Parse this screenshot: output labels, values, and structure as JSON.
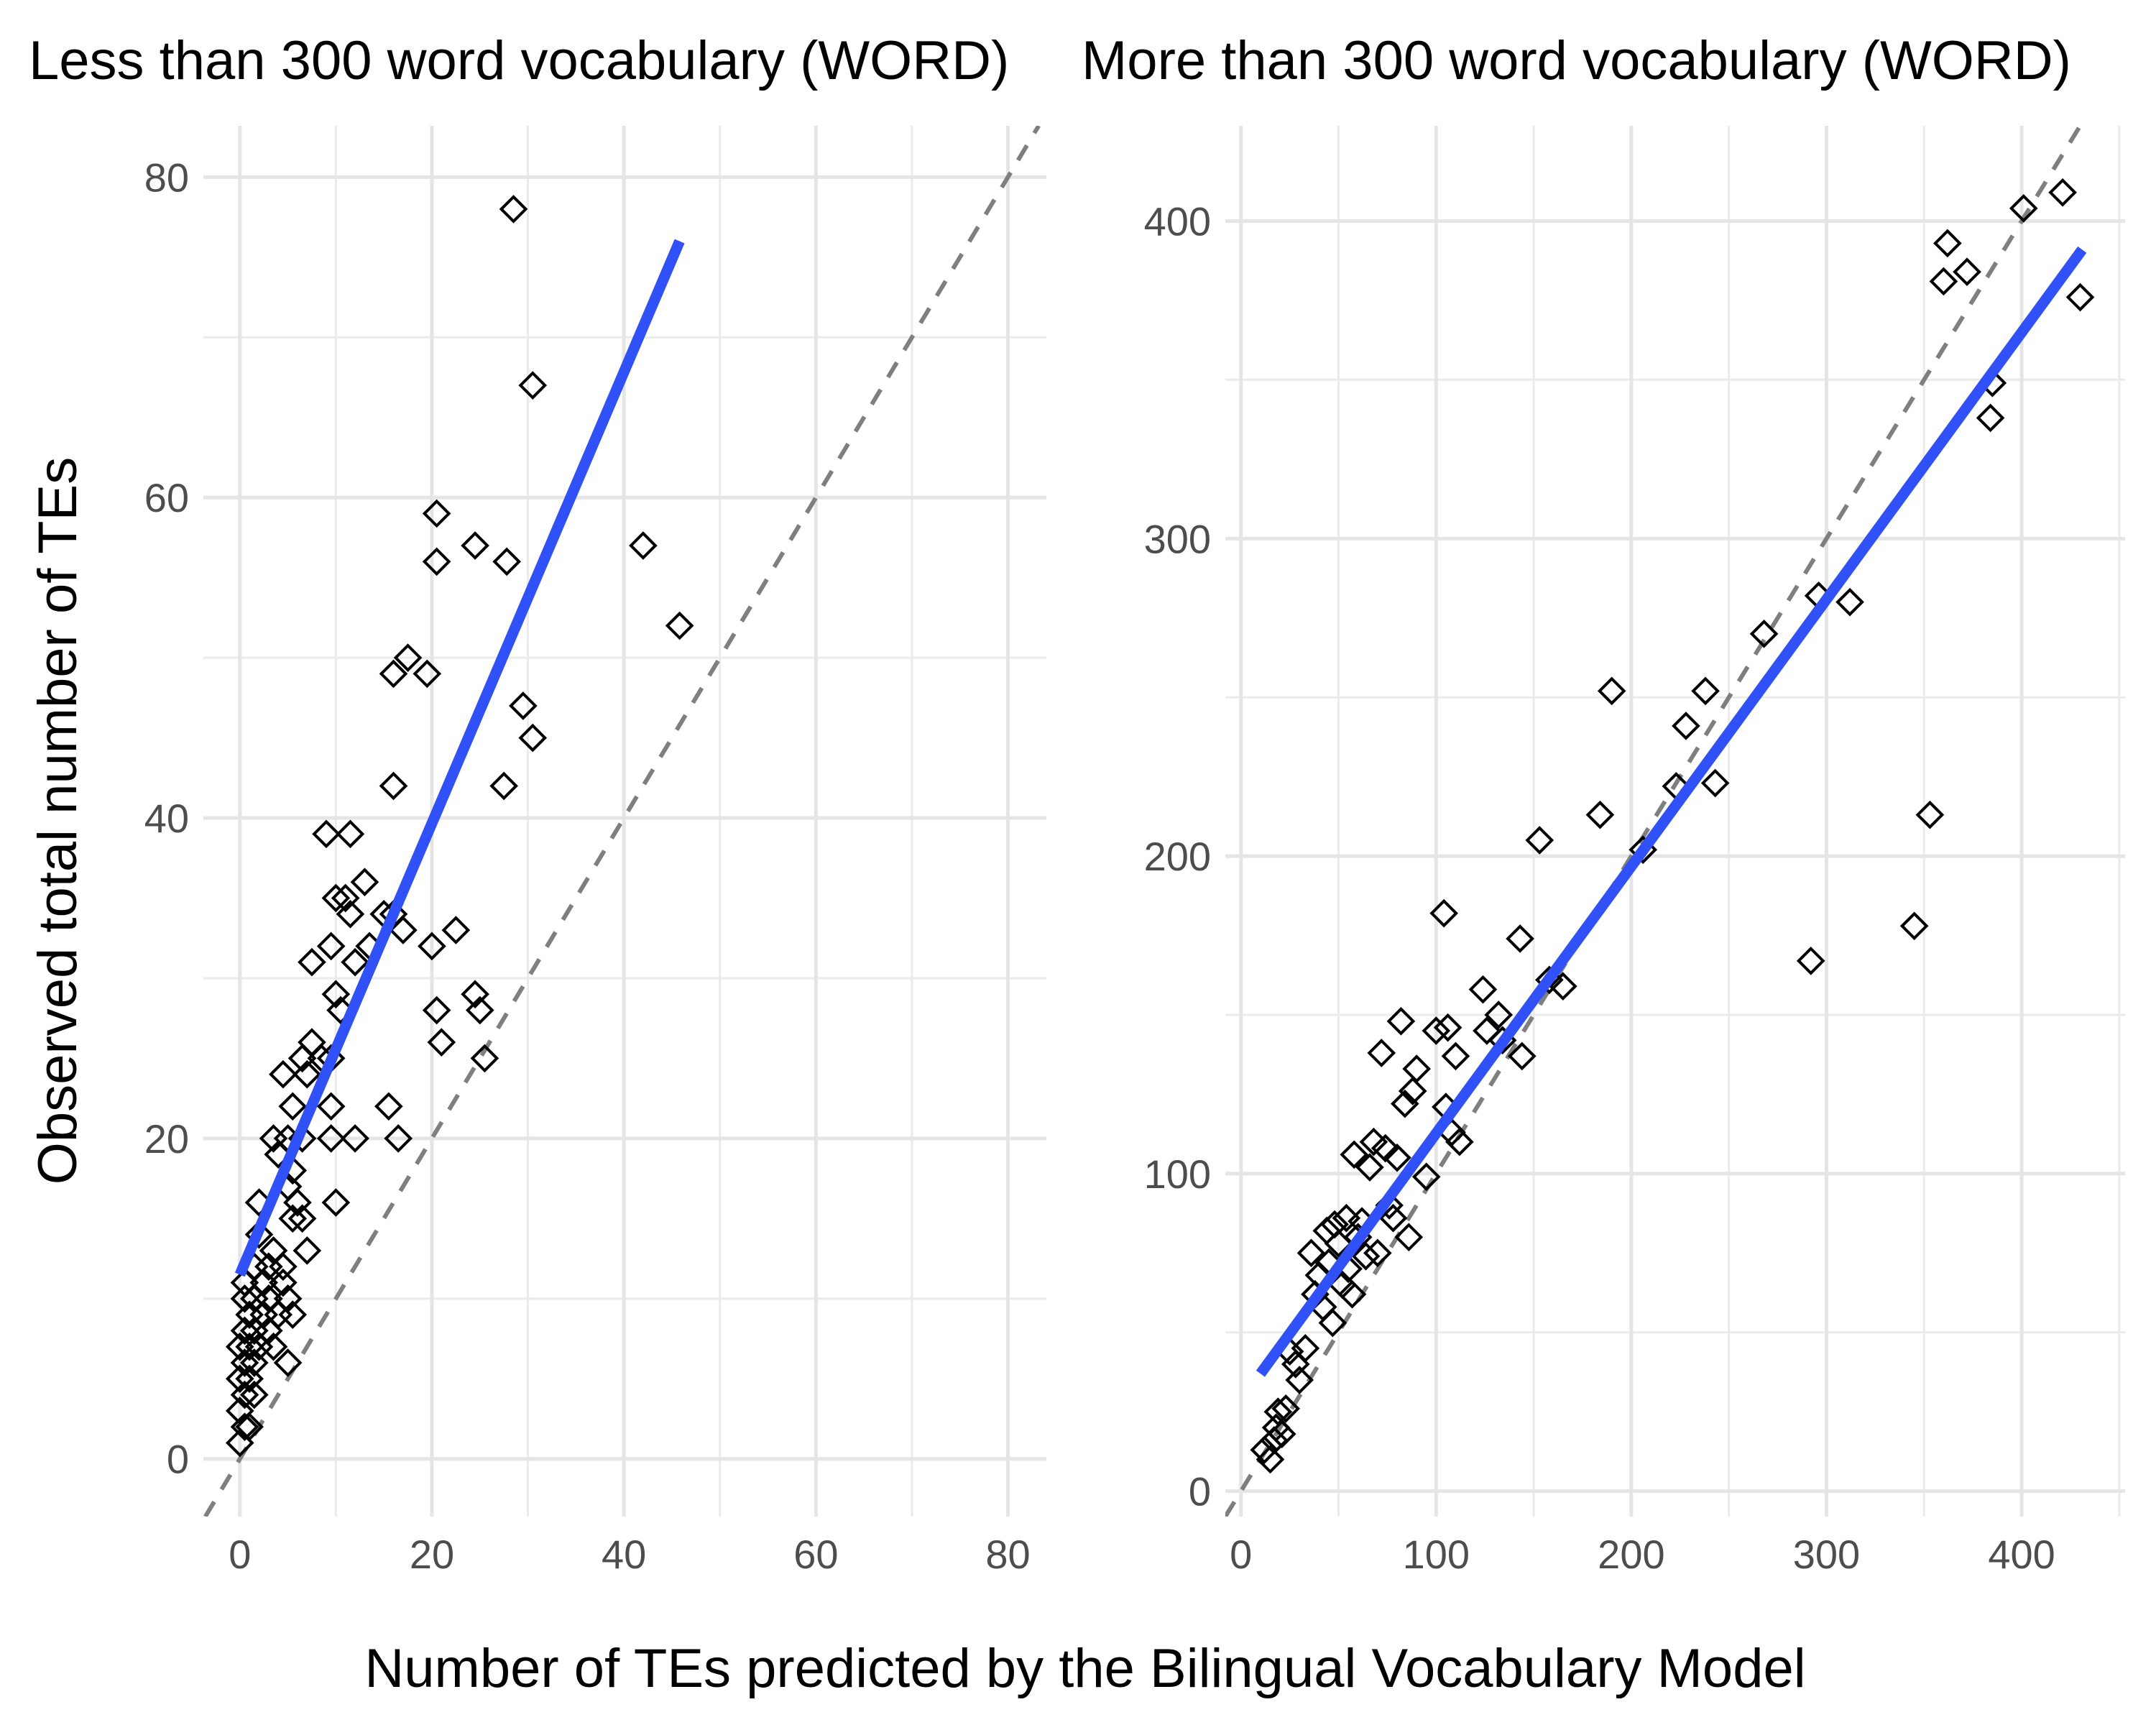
{
  "figure": {
    "xlabel": "Number of TEs predicted by the Bilingual Vocabulary Model",
    "ylabel": "Observed total number of TEs"
  },
  "colors": {
    "fit": "#3050f8",
    "identity": "#7f7f7f",
    "points": "#000000",
    "grid": "#ebebeb",
    "ticks": "#4d4d4d"
  },
  "chart_data": [
    {
      "type": "scatter",
      "title": "Less than 300 word vocabulary (WORD)",
      "xlim": [
        -3.8,
        84
      ],
      "ylim": [
        -3.6,
        83.2
      ],
      "x_ticks": [
        0,
        20,
        40,
        60,
        80
      ],
      "y_ticks": [
        0,
        20,
        40,
        60,
        80
      ],
      "marker": "open-diamond",
      "grid": true,
      "fit_line": {
        "x": [
          0,
          45.8
        ],
        "y": [
          11.5,
          76
        ]
      },
      "identity_line": true,
      "points": [
        {
          "x": 28.5,
          "y": 78
        },
        {
          "x": 30.5,
          "y": 67
        },
        {
          "x": 20.5,
          "y": 59
        },
        {
          "x": 20.5,
          "y": 56
        },
        {
          "x": 24.5,
          "y": 57
        },
        {
          "x": 27.8,
          "y": 56
        },
        {
          "x": 42,
          "y": 57
        },
        {
          "x": 45.8,
          "y": 52
        },
        {
          "x": 17.5,
          "y": 50
        },
        {
          "x": 16,
          "y": 49
        },
        {
          "x": 19.5,
          "y": 49
        },
        {
          "x": 29.5,
          "y": 47
        },
        {
          "x": 30.5,
          "y": 45
        },
        {
          "x": 16,
          "y": 42
        },
        {
          "x": 27.5,
          "y": 42
        },
        {
          "x": 9,
          "y": 39
        },
        {
          "x": 11.5,
          "y": 39
        },
        {
          "x": 13,
          "y": 36
        },
        {
          "x": 10,
          "y": 35
        },
        {
          "x": 11,
          "y": 35
        },
        {
          "x": 11.5,
          "y": 34
        },
        {
          "x": 15,
          "y": 34
        },
        {
          "x": 16,
          "y": 34
        },
        {
          "x": 17,
          "y": 33
        },
        {
          "x": 22.5,
          "y": 33
        },
        {
          "x": 7.5,
          "y": 31
        },
        {
          "x": 12,
          "y": 31
        },
        {
          "x": 9.5,
          "y": 32
        },
        {
          "x": 13.5,
          "y": 32
        },
        {
          "x": 20,
          "y": 32
        },
        {
          "x": 10,
          "y": 29
        },
        {
          "x": 24.5,
          "y": 29
        },
        {
          "x": 10.5,
          "y": 28
        },
        {
          "x": 20.5,
          "y": 28
        },
        {
          "x": 25,
          "y": 28
        },
        {
          "x": 21,
          "y": 26
        },
        {
          "x": 7.5,
          "y": 26
        },
        {
          "x": 6.5,
          "y": 25
        },
        {
          "x": 8.5,
          "y": 25
        },
        {
          "x": 9.5,
          "y": 25
        },
        {
          "x": 25.5,
          "y": 25
        },
        {
          "x": 4.5,
          "y": 24
        },
        {
          "x": 7,
          "y": 24
        },
        {
          "x": 5.5,
          "y": 22
        },
        {
          "x": 9.5,
          "y": 22
        },
        {
          "x": 15.5,
          "y": 22
        },
        {
          "x": 3.5,
          "y": 20
        },
        {
          "x": 5,
          "y": 20
        },
        {
          "x": 6.5,
          "y": 20
        },
        {
          "x": 9.5,
          "y": 20
        },
        {
          "x": 12,
          "y": 20
        },
        {
          "x": 16.5,
          "y": 20
        },
        {
          "x": 4,
          "y": 19
        },
        {
          "x": 5.5,
          "y": 18
        },
        {
          "x": 5,
          "y": 17
        },
        {
          "x": 6,
          "y": 16
        },
        {
          "x": 2,
          "y": 16
        },
        {
          "x": 10,
          "y": 16
        },
        {
          "x": 5.5,
          "y": 15
        },
        {
          "x": 6.5,
          "y": 15
        },
        {
          "x": 2,
          "y": 14
        },
        {
          "x": 3.5,
          "y": 13
        },
        {
          "x": 7,
          "y": 13
        },
        {
          "x": 1.5,
          "y": 12
        },
        {
          "x": 3,
          "y": 12
        },
        {
          "x": 4.5,
          "y": 12
        },
        {
          "x": 0.5,
          "y": 11
        },
        {
          "x": 2.5,
          "y": 11
        },
        {
          "x": 4.5,
          "y": 11
        },
        {
          "x": 0.5,
          "y": 10
        },
        {
          "x": 1.5,
          "y": 10
        },
        {
          "x": 3,
          "y": 10
        },
        {
          "x": 5,
          "y": 10
        },
        {
          "x": 1,
          "y": 9
        },
        {
          "x": 2.5,
          "y": 9
        },
        {
          "x": 4,
          "y": 9
        },
        {
          "x": 5.5,
          "y": 9
        },
        {
          "x": 0.5,
          "y": 8
        },
        {
          "x": 1.5,
          "y": 8
        },
        {
          "x": 3,
          "y": 8
        },
        {
          "x": 0,
          "y": 7
        },
        {
          "x": 1,
          "y": 7
        },
        {
          "x": 2,
          "y": 7
        },
        {
          "x": 3.5,
          "y": 7
        },
        {
          "x": 0.5,
          "y": 6
        },
        {
          "x": 1.5,
          "y": 6
        },
        {
          "x": 5,
          "y": 6
        },
        {
          "x": 0,
          "y": 5
        },
        {
          "x": 1,
          "y": 5
        },
        {
          "x": 0.5,
          "y": 4
        },
        {
          "x": 1.5,
          "y": 4
        },
        {
          "x": 0,
          "y": 3
        },
        {
          "x": 0.5,
          "y": 2
        },
        {
          "x": 1,
          "y": 2
        },
        {
          "x": 0,
          "y": 1
        }
      ]
    },
    {
      "type": "scatter",
      "title": "More than 300 word vocabulary (WORD)",
      "xlim": [
        -8,
        453
      ],
      "ylim": [
        -8,
        430
      ],
      "x_ticks": [
        0,
        100,
        200,
        300,
        400
      ],
      "y_ticks": [
        0,
        100,
        200,
        300,
        400
      ],
      "marker": "open-diamond",
      "grid": true,
      "fit_line": {
        "x": [
          10,
          431
        ],
        "y": [
          37,
          391
        ]
      },
      "identity_line": true,
      "points": [
        {
          "x": 12,
          "y": 13
        },
        {
          "x": 15,
          "y": 10
        },
        {
          "x": 17,
          "y": 16
        },
        {
          "x": 18,
          "y": 20
        },
        {
          "x": 19,
          "y": 25
        },
        {
          "x": 21,
          "y": 18
        },
        {
          "x": 23,
          "y": 26
        },
        {
          "x": 25,
          "y": 44
        },
        {
          "x": 28,
          "y": 40
        },
        {
          "x": 30,
          "y": 35
        },
        {
          "x": 33,
          "y": 45
        },
        {
          "x": 36,
          "y": 75
        },
        {
          "x": 38,
          "y": 62
        },
        {
          "x": 40,
          "y": 68
        },
        {
          "x": 42,
          "y": 58
        },
        {
          "x": 44,
          "y": 82
        },
        {
          "x": 45,
          "y": 72
        },
        {
          "x": 47,
          "y": 53
        },
        {
          "x": 48,
          "y": 84
        },
        {
          "x": 50,
          "y": 78
        },
        {
          "x": 52,
          "y": 65
        },
        {
          "x": 54,
          "y": 86
        },
        {
          "x": 55,
          "y": 70
        },
        {
          "x": 57,
          "y": 62
        },
        {
          "x": 58,
          "y": 106
        },
        {
          "x": 60,
          "y": 80
        },
        {
          "x": 62,
          "y": 85
        },
        {
          "x": 64,
          "y": 74
        },
        {
          "x": 66,
          "y": 102
        },
        {
          "x": 68,
          "y": 110
        },
        {
          "x": 70,
          "y": 75
        },
        {
          "x": 72,
          "y": 138
        },
        {
          "x": 74,
          "y": 108
        },
        {
          "x": 76,
          "y": 90
        },
        {
          "x": 78,
          "y": 86
        },
        {
          "x": 80,
          "y": 105
        },
        {
          "x": 82,
          "y": 148
        },
        {
          "x": 84,
          "y": 122
        },
        {
          "x": 86,
          "y": 80
        },
        {
          "x": 88,
          "y": 126
        },
        {
          "x": 90,
          "y": 133
        },
        {
          "x": 95,
          "y": 99
        },
        {
          "x": 100,
          "y": 145
        },
        {
          "x": 104,
          "y": 182
        },
        {
          "x": 105,
          "y": 121
        },
        {
          "x": 106,
          "y": 146
        },
        {
          "x": 108,
          "y": 113
        },
        {
          "x": 110,
          "y": 137
        },
        {
          "x": 112,
          "y": 110
        },
        {
          "x": 124,
          "y": 158
        },
        {
          "x": 126,
          "y": 145
        },
        {
          "x": 132,
          "y": 150
        },
        {
          "x": 134,
          "y": 142
        },
        {
          "x": 143,
          "y": 174
        },
        {
          "x": 144,
          "y": 137
        },
        {
          "x": 153,
          "y": 205
        },
        {
          "x": 158,
          "y": 161
        },
        {
          "x": 165,
          "y": 159
        },
        {
          "x": 184,
          "y": 213
        },
        {
          "x": 190,
          "y": 252
        },
        {
          "x": 206,
          "y": 202
        },
        {
          "x": 223,
          "y": 222
        },
        {
          "x": 228,
          "y": 241
        },
        {
          "x": 238,
          "y": 252
        },
        {
          "x": 243,
          "y": 223
        },
        {
          "x": 268,
          "y": 270
        },
        {
          "x": 292,
          "y": 167
        },
        {
          "x": 296,
          "y": 282
        },
        {
          "x": 312,
          "y": 280
        },
        {
          "x": 345,
          "y": 178
        },
        {
          "x": 353,
          "y": 213
        },
        {
          "x": 360,
          "y": 381
        },
        {
          "x": 362,
          "y": 393
        },
        {
          "x": 372,
          "y": 384
        },
        {
          "x": 384,
          "y": 338
        },
        {
          "x": 385,
          "y": 349
        },
        {
          "x": 401,
          "y": 404
        },
        {
          "x": 421,
          "y": 409
        },
        {
          "x": 430,
          "y": 376
        }
      ]
    }
  ]
}
